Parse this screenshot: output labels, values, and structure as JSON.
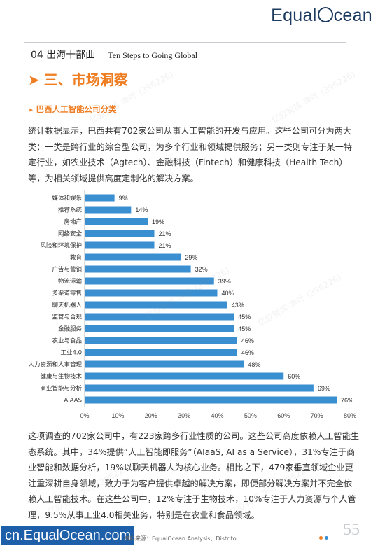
{
  "logo": {
    "before": "Equal",
    "after": "cean"
  },
  "header": {
    "section_cn": "04 出海十部曲",
    "section_en": "Ten Steps to Going Global"
  },
  "heading": {
    "arrow": "➤",
    "text": "三、市场洞察"
  },
  "subheading": {
    "arrow": "➤",
    "text": "巴西人工智能公司分类"
  },
  "paragraph1": "统计数据显示，巴西共有702家公司从事人工智能的开发与应用。这些公司可分为两大类：一类是跨行业的综合型公司，为多个行业和领域提供服务；另一类则专注于某一特定行业，如农业技术（Agtech）、金融科技（Fintech）和健康科技（Health Tech）等，为相关领域提供高度定制化的解决方案。",
  "chart_data": {
    "type": "bar",
    "orientation": "horizontal",
    "categories": [
      "媒体和娱乐",
      "推荐系统",
      "房地产",
      "网络安全",
      "风险和环境保护",
      "教育",
      "广告与营销",
      "物流运输",
      "多渠道零售",
      "聊天机器人",
      "监管与合规",
      "金融服务",
      "农业与食品",
      "工业4.0",
      "人力资源和人事管理",
      "健康与生物技术",
      "商业智能与分析",
      "AIAAS"
    ],
    "values": [
      9,
      14,
      19,
      21,
      21,
      29,
      32,
      39,
      40,
      43,
      45,
      45,
      46,
      46,
      48,
      60,
      69,
      76
    ],
    "value_labels": [
      "9%",
      "14%",
      "19%",
      "21%",
      "21%",
      "29%",
      "32%",
      "39%",
      "40%",
      "43%",
      "45%",
      "45%",
      "46%",
      "46%",
      "48%",
      "60%",
      "69%",
      "76%"
    ],
    "x_ticks": [
      "0%",
      "10%",
      "20%",
      "30%",
      "40%",
      "50%",
      "60%",
      "70%",
      "80%"
    ],
    "xlim": [
      0,
      80
    ],
    "bar_color": "#3a8fd1",
    "grid": false,
    "title": "",
    "xlabel": "",
    "ylabel": ""
  },
  "paragraph2": "这项调查的702家公司中，有223家跨多行业性质的公司。这些公司高度依赖人工智能生态系统。其中，34%提供“人工智能即服务”（AIaaS, AI as a Service），31%专注于商业智能和数据分析，19%以聊天机器人为核心业务。相比之下，479家垂直领域企业更注重深耕自身领域，致力于为客户提供卓越的解决方案，即便部分解决方案并不完全依赖人工智能技术。在这些公司中，12%专注于生物技术，10%专注于人力资源与个人管理，9.5%从事工业4.0相关业务，特别是在农业和食品领域。",
  "footer": {
    "url": "cn.EqualOcean.com",
    "source": "资料来源：EqualOcean Analysis、Distrito",
    "page": "55"
  },
  "watermark": "亿欧智库-李叶 (396226)",
  "colors": {
    "accent": "#ef7d22",
    "brand": "#1d3a5f",
    "bar": "#3a8fd1",
    "footer_bg": "#1d5fa8",
    "dot1": "#ef7d22",
    "dot2": "#3a8fd1"
  }
}
